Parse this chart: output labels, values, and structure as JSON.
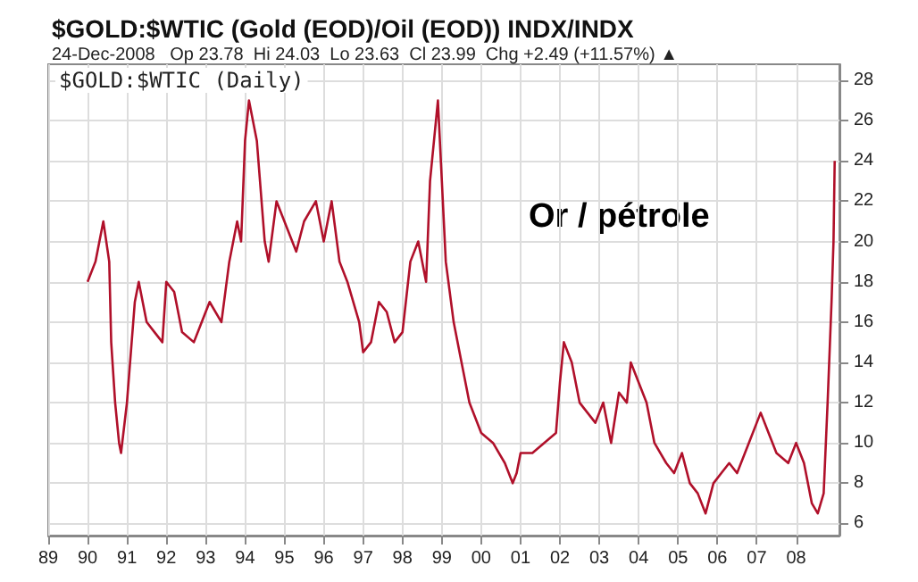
{
  "chart_data": {
    "type": "line",
    "title": "$GOLD:$WTIC (Gold (EOD)/Oil (EOD)) INDX/INDX",
    "subtitle": "24-Dec-2008   Op 23.78  Hi 24.03  Lo 23.63  Cl 23.99  Chg +2.49 (+11.57%) ▲",
    "annotations": [
      "$GOLD:$WTIC (Daily)",
      "Or / pétrole"
    ],
    "x": [
      1990.0,
      1990.2,
      1990.4,
      1990.55,
      1990.6,
      1990.7,
      1990.8,
      1990.85,
      1991.0,
      1991.2,
      1991.3,
      1991.5,
      1991.7,
      1991.9,
      1992.0,
      1992.2,
      1992.4,
      1992.7,
      1992.9,
      1993.1,
      1993.4,
      1993.6,
      1993.8,
      1993.9,
      1994.0,
      1994.1,
      1994.3,
      1994.5,
      1994.6,
      1994.8,
      1995.0,
      1995.3,
      1995.5,
      1995.8,
      1996.0,
      1996.2,
      1996.4,
      1996.6,
      1996.9,
      1997.0,
      1997.2,
      1997.4,
      1997.6,
      1997.8,
      1998.0,
      1998.2,
      1998.4,
      1998.6,
      1998.7,
      1998.9,
      1999.0,
      1999.1,
      1999.3,
      1999.5,
      1999.7,
      2000.0,
      2000.3,
      2000.6,
      2000.8,
      2000.9,
      2001.0,
      2001.3,
      2001.6,
      2001.9,
      2002.0,
      2002.1,
      2002.3,
      2002.5,
      2002.7,
      2002.9,
      2003.1,
      2003.3,
      2003.5,
      2003.7,
      2003.8,
      2004.0,
      2004.2,
      2004.4,
      2004.7,
      2004.9,
      2005.1,
      2005.3,
      2005.5,
      2005.7,
      2005.9,
      2006.1,
      2006.3,
      2006.5,
      2006.8,
      2007.0,
      2007.1,
      2007.3,
      2007.5,
      2007.8,
      2008.0,
      2008.2,
      2008.4,
      2008.55,
      2008.7,
      2008.8,
      2008.9,
      2008.95,
      2008.98
    ],
    "series": [
      {
        "color": "#b0102a",
        "values": [
          18,
          19,
          21,
          19,
          15,
          12,
          10,
          9.5,
          12,
          17,
          18,
          16,
          15.5,
          15,
          18,
          17.5,
          15.5,
          15,
          16,
          17,
          16,
          19,
          21,
          20,
          25,
          27,
          25,
          20,
          19,
          22,
          21,
          19.5,
          21,
          22,
          20,
          22,
          19,
          18,
          16,
          14.5,
          15,
          17,
          16.5,
          15,
          15.5,
          19,
          20,
          18,
          23,
          27,
          23,
          19,
          16,
          14,
          12,
          10.5,
          10,
          9,
          8,
          8.5,
          9.5,
          9.5,
          10,
          10.5,
          13,
          15,
          14,
          12,
          11.5,
          11,
          12,
          10,
          12.5,
          12,
          14,
          13,
          12,
          10,
          9,
          8.5,
          9.5,
          8,
          7.5,
          6.5,
          8,
          8.5,
          9,
          8.5,
          10,
          11,
          11.5,
          10.5,
          9.5,
          9,
          10,
          9,
          7,
          6.5,
          7.5,
          12,
          17,
          20,
          24
        ]
      }
    ],
    "xlim": [
      1989,
      2009.1
    ],
    "xticks": [
      {
        "value": 1989,
        "label": "89"
      },
      {
        "value": 1990,
        "label": "90"
      },
      {
        "value": 1991,
        "label": "91"
      },
      {
        "value": 1992,
        "label": "92"
      },
      {
        "value": 1993,
        "label": "93"
      },
      {
        "value": 1994,
        "label": "94"
      },
      {
        "value": 1995,
        "label": "95"
      },
      {
        "value": 1996,
        "label": "96"
      },
      {
        "value": 1997,
        "label": "97"
      },
      {
        "value": 1998,
        "label": "98"
      },
      {
        "value": 1999,
        "label": "99"
      },
      {
        "value": 2000,
        "label": "00"
      },
      {
        "value": 2001,
        "label": "01"
      },
      {
        "value": 2002,
        "label": "02"
      },
      {
        "value": 2003,
        "label": "03"
      },
      {
        "value": 2004,
        "label": "04"
      },
      {
        "value": 2005,
        "label": "05"
      },
      {
        "value": 2006,
        "label": "06"
      },
      {
        "value": 2007,
        "label": "07"
      },
      {
        "value": 2008,
        "label": "08"
      }
    ],
    "ylim": [
      5.4,
      28.8
    ],
    "yticks": [
      6,
      8,
      10,
      12,
      14,
      16,
      18,
      20,
      22,
      24,
      26,
      28
    ],
    "grid": true,
    "marker": "none",
    "line_style": "solid"
  }
}
